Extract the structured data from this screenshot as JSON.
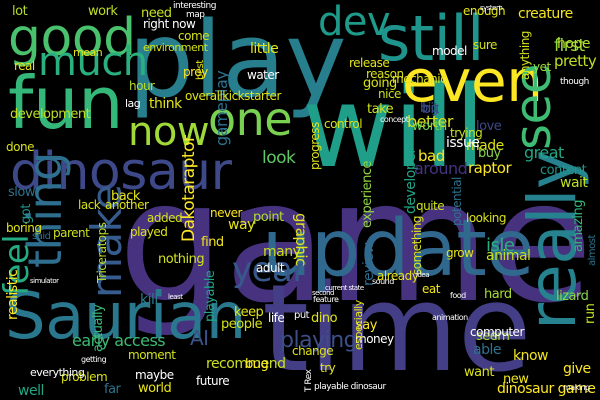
{
  "words": [
    {
      "text": "game",
      "color": "#46327e"
    },
    {
      "text": "play",
      "color": "#277f8e"
    },
    {
      "text": "will",
      "color": "#1f9e89"
    },
    {
      "text": "time",
      "color": "#433e85"
    },
    {
      "text": "Saurian",
      "color": "#2a788e"
    },
    {
      "text": "dinosaur",
      "color": "#3e4989"
    },
    {
      "text": "even",
      "color": "#fde725"
    },
    {
      "text": "fun",
      "color": "#35b779"
    },
    {
      "text": "good",
      "color": "#4ac16d"
    },
    {
      "text": "update",
      "color": "#31688e"
    },
    {
      "text": "really",
      "color": "#26828e"
    },
    {
      "text": "still",
      "color": "#1f948c"
    },
    {
      "text": "one",
      "color": "#7ad151"
    },
    {
      "text": "now",
      "color": "#a0da39"
    },
    {
      "text": "much",
      "color": "#2ab07f"
    },
    {
      "text": "thing",
      "color": "#2e6e8e"
    },
    {
      "text": "make",
      "color": "#365c8d"
    },
    {
      "text": "feel",
      "color": "#25ab82"
    },
    {
      "text": "see",
      "color": "#3fbc73"
    },
    {
      "text": "dev",
      "color": "#1e9b8a"
    },
    {
      "text": "year",
      "color": "#38588c"
    },
    {
      "text": "playing",
      "color": "#3d4e8a"
    },
    {
      "text": "AI",
      "color": "#3b528b"
    },
    {
      "text": "early access",
      "color": "#3dbc74"
    },
    {
      "text": "realistic",
      "color": "#fde725"
    },
    {
      "text": "Dakotaraptor",
      "color": "#fde725"
    },
    {
      "text": "gameplay",
      "color": "#2c728e"
    },
    {
      "text": "first",
      "color": "#95d840"
    },
    {
      "text": "pretty",
      "color": "#c2df23"
    },
    {
      "text": "hope",
      "color": "#b5de2b"
    },
    {
      "text": "look",
      "color": "#5ec962"
    },
    {
      "text": "better",
      "color": "#d8e219"
    },
    {
      "text": "graphic",
      "color": "#e5e419"
    },
    {
      "text": "experience",
      "color": "#90d743"
    },
    {
      "text": "developer",
      "color": "#20a386"
    },
    {
      "text": "wait",
      "color": "#bddf26"
    },
    {
      "text": "big",
      "color": "#3b528b"
    },
    {
      "text": "great",
      "color": "#22a785"
    },
    {
      "text": "raptor",
      "color": "#fde725"
    },
    {
      "text": "around",
      "color": "#46337f"
    },
    {
      "text": "made",
      "color": "#dfe318"
    },
    {
      "text": "amazing",
      "color": "#35b779"
    },
    {
      "text": "content",
      "color": "#1f978b"
    },
    {
      "text": "isle",
      "color": "#2ab07f"
    },
    {
      "text": "animal",
      "color": "#c2df23"
    },
    {
      "text": "bad",
      "color": "#fde725"
    },
    {
      "text": "buy",
      "color": "#86d549"
    },
    {
      "text": "issue",
      "color": "#ffffff"
    },
    {
      "text": "worth",
      "color": "#6ece58"
    },
    {
      "text": "love",
      "color": "#3f4788"
    },
    {
      "text": "bit",
      "color": "#3e4a89"
    },
    {
      "text": "need",
      "color": "#c8e020"
    },
    {
      "text": "work",
      "color": "#c0df25"
    },
    {
      "text": "lot",
      "color": "#b2dd2d"
    },
    {
      "text": "come",
      "color": "#d5e21a"
    },
    {
      "text": "right now",
      "color": "#ffffff"
    },
    {
      "text": "development",
      "color": "#bddf26"
    },
    {
      "text": "think",
      "color": "#e2e418"
    },
    {
      "text": "hour",
      "color": "#b8de29"
    },
    {
      "text": "back",
      "color": "#e7e419"
    },
    {
      "text": "slow",
      "color": "#2c718e"
    },
    {
      "text": "got",
      "color": "#1f958b"
    },
    {
      "text": "nothing",
      "color": "#d2e21b"
    },
    {
      "text": "many",
      "color": "#cde11d"
    },
    {
      "text": "find",
      "color": "#f1e51d"
    },
    {
      "text": "point",
      "color": "#b0dd2f"
    },
    {
      "text": "way",
      "color": "#e5e419"
    },
    {
      "text": "never",
      "color": "#fde725"
    },
    {
      "text": "keep",
      "color": "#e2e418"
    },
    {
      "text": "people",
      "color": "#d5e21a"
    },
    {
      "text": "dino",
      "color": "#dde318"
    },
    {
      "text": "recommend",
      "color": "#c8e020"
    },
    {
      "text": "world",
      "color": "#e7e419"
    },
    {
      "text": "bug",
      "color": "#fde725"
    },
    {
      "text": "well",
      "color": "#22a785"
    },
    {
      "text": "far",
      "color": "#2c728e"
    },
    {
      "text": "kill",
      "color": "#277f8e"
    },
    {
      "text": "actually",
      "color": "#3dbc74"
    },
    {
      "text": "playable",
      "color": "#20a386"
    },
    {
      "text": "review",
      "color": "#2f6c8e"
    },
    {
      "text": "say",
      "color": "#fde725"
    },
    {
      "text": "money",
      "color": "#ffffff"
    },
    {
      "text": "able",
      "color": "#2c728e"
    },
    {
      "text": "know",
      "color": "#efe51c"
    },
    {
      "text": "give",
      "color": "#fde725"
    },
    {
      "text": "want",
      "color": "#d8e219"
    },
    {
      "text": "new",
      "color": "#f1e51d"
    },
    {
      "text": "dinosaur game",
      "color": "#fde725"
    },
    {
      "text": "run",
      "color": "#c5e021"
    },
    {
      "text": "seem",
      "color": "#a5db36"
    },
    {
      "text": "hard",
      "color": "#a8db34"
    },
    {
      "text": "lizard",
      "color": "#8bd646"
    },
    {
      "text": "potential",
      "color": "#2c728e"
    },
    {
      "text": "take",
      "color": "#d2e21b"
    },
    {
      "text": "going",
      "color": "#d8e219"
    },
    {
      "text": "nice",
      "color": "#c8e020"
    },
    {
      "text": "progress",
      "color": "#e2e418"
    },
    {
      "text": "release",
      "color": "#dfe318"
    },
    {
      "text": "reason",
      "color": "#d5e21a"
    },
    {
      "text": "enough",
      "color": "#e5e419"
    },
    {
      "text": "sure",
      "color": "#d8e219"
    },
    {
      "text": "model",
      "color": "#ffffff"
    },
    {
      "text": "mechanic",
      "color": "#dfe318"
    },
    {
      "text": "yet",
      "color": "#a0da39"
    },
    {
      "text": "creature",
      "color": "#f1e51d"
    },
    {
      "text": "anything",
      "color": "#d2e21b"
    },
    {
      "text": "overallkickstarter",
      "color": "#dfe318"
    },
    {
      "text": "water",
      "color": "#ffffff"
    },
    {
      "text": "prey",
      "color": "#fde725"
    },
    {
      "text": "little",
      "color": "#e5e419"
    },
    {
      "text": "trying",
      "color": "#c8e020"
    },
    {
      "text": "control",
      "color": "#d5e21a"
    },
    {
      "text": "looking",
      "color": "#d8e219"
    },
    {
      "text": "grow",
      "color": "#e2e418"
    },
    {
      "text": "quite",
      "color": "#cde11d"
    },
    {
      "text": "something",
      "color": "#dde318"
    },
    {
      "text": "already",
      "color": "#e5e419"
    },
    {
      "text": "eat",
      "color": "#f1e51d"
    },
    {
      "text": "computer",
      "color": "#ffffff"
    },
    {
      "text": "especially",
      "color": "#e7e419"
    },
    {
      "text": "change",
      "color": "#dfe318"
    },
    {
      "text": "life",
      "color": "#ffffff"
    },
    {
      "text": "adult",
      "color": "#ffffff"
    },
    {
      "text": "added",
      "color": "#d5e21a"
    },
    {
      "text": "played",
      "color": "#dde318"
    },
    {
      "text": "future",
      "color": "#ffffff"
    },
    {
      "text": "moment",
      "color": "#d2e21b"
    },
    {
      "text": "maybe",
      "color": "#ffffff"
    },
    {
      "text": "problem",
      "color": "#d8e219"
    },
    {
      "text": "everything",
      "color": "#ffffff"
    },
    {
      "text": "boring",
      "color": "#dfe318"
    },
    {
      "text": "parent",
      "color": "#c8e020"
    },
    {
      "text": "lack",
      "color": "#d5e21a"
    },
    {
      "text": "another",
      "color": "#dde318"
    },
    {
      "text": "Triceratops",
      "color": "#b8de29"
    },
    {
      "text": "done",
      "color": "#d8e219"
    },
    {
      "text": "real",
      "color": "#e5e419"
    },
    {
      "text": "mean",
      "color": "#dfe318"
    },
    {
      "text": "lag",
      "color": "#ffffff"
    },
    {
      "text": "put",
      "color": "#ffffff"
    },
    {
      "text": "try",
      "color": "#e2e418"
    },
    {
      "text": "environment",
      "color": "#d2e21b"
    },
    {
      "text": "interesting",
      "color": "#ffffff"
    },
    {
      "text": "map",
      "color": "#ffffff"
    },
    {
      "text": "best",
      "color": "#e2e418"
    },
    {
      "text": "T Rex",
      "color": "#ffffff"
    },
    {
      "text": "playable dinosaur",
      "color": "#ffffff"
    },
    {
      "text": "concept",
      "color": "#ffffff"
    },
    {
      "text": "though",
      "color": "#ffffff"
    },
    {
      "text": "sound",
      "color": "#ffffff"
    },
    {
      "text": "feature",
      "color": "#ffffff"
    },
    {
      "text": "animation",
      "color": "#ffffff"
    },
    {
      "text": "food",
      "color": "#ffffff"
    },
    {
      "text": "almost",
      "color": "#2c728e"
    },
    {
      "text": "making",
      "color": "#ffffff"
    },
    {
      "text": "said",
      "color": "#2c728e"
    },
    {
      "text": "getting",
      "color": "#ffffff"
    },
    {
      "text": "current state",
      "color": "#ffffff"
    },
    {
      "text": "second",
      "color": "#ffffff"
    },
    {
      "text": "idea",
      "color": "#ffffff"
    },
    {
      "text": "least",
      "color": "#ffffff"
    },
    {
      "text": "simulator",
      "color": "#ffffff"
    },
    {
      "text": "system",
      "color": "#ffffff"
    }
  ]
}
